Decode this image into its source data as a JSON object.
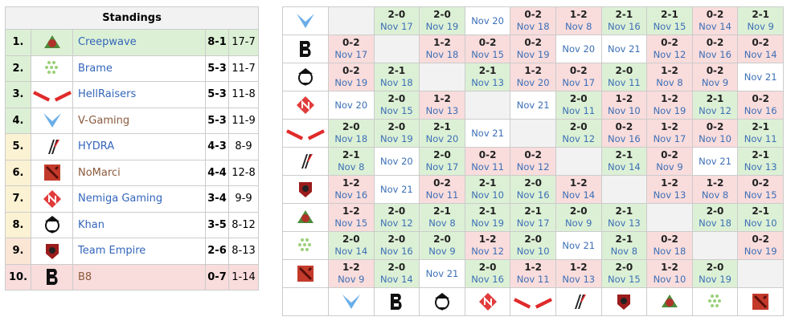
{
  "standings": {
    "title": "Standings",
    "rows": [
      {
        "rank": "1.",
        "team": "Creepwave",
        "matches": "8-1",
        "games": "17-7"
      },
      {
        "rank": "2.",
        "team": "Brame",
        "matches": "5-3",
        "games": "11-7"
      },
      {
        "rank": "3.",
        "team": "HellRaisers",
        "matches": "5-3",
        "games": "11-8"
      },
      {
        "rank": "4.",
        "team": "V-Gaming",
        "matches": "5-3",
        "games": "11-9"
      },
      {
        "rank": "5.",
        "team": "HYDRA",
        "matches": "4-3",
        "games": "8-9"
      },
      {
        "rank": "6.",
        "team": "NoMarci",
        "matches": "4-4",
        "games": "12-8"
      },
      {
        "rank": "7.",
        "team": "Nemiga Gaming",
        "matches": "3-4",
        "games": "9-9"
      },
      {
        "rank": "8.",
        "team": "Khan",
        "matches": "3-5",
        "games": "8-12"
      },
      {
        "rank": "9.",
        "team": "Team Empire",
        "matches": "2-6",
        "games": "8-13"
      },
      {
        "rank": "10.",
        "team": "B8",
        "matches": "0-7",
        "games": "1-14"
      }
    ]
  },
  "crosstable": {
    "rows": [
      [
        null,
        {
          "score": "2-0",
          "date": "Nov 17"
        },
        {
          "score": "2-0",
          "date": "Nov 19"
        },
        {
          "date": "Nov 20"
        },
        {
          "score": "0-2",
          "date": "Nov 18"
        },
        {
          "score": "1-2",
          "date": "Nov 8"
        },
        {
          "score": "2-1",
          "date": "Nov 16"
        },
        {
          "score": "2-1",
          "date": "Nov 15"
        },
        {
          "score": "0-2",
          "date": "Nov 14"
        },
        {
          "score": "2-1",
          "date": "Nov 9"
        }
      ],
      [
        {
          "score": "0-2",
          "date": "Nov 17"
        },
        null,
        {
          "score": "1-2",
          "date": "Nov 18"
        },
        {
          "score": "0-2",
          "date": "Nov 15"
        },
        {
          "score": "0-2",
          "date": "Nov 19"
        },
        {
          "date": "Nov 20"
        },
        {
          "date": "Nov 21"
        },
        {
          "score": "0-2",
          "date": "Nov 12"
        },
        {
          "score": "0-2",
          "date": "Nov 16"
        },
        {
          "score": "0-2",
          "date": "Nov 14"
        }
      ],
      [
        {
          "score": "0-2",
          "date": "Nov 19"
        },
        {
          "score": "2-1",
          "date": "Nov 18"
        },
        null,
        {
          "score": "2-1",
          "date": "Nov 13"
        },
        {
          "score": "1-2",
          "date": "Nov 20"
        },
        {
          "score": "0-2",
          "date": "Nov 17"
        },
        {
          "score": "2-0",
          "date": "Nov 11"
        },
        {
          "score": "1-2",
          "date": "Nov 8"
        },
        {
          "score": "0-2",
          "date": "Nov 9"
        },
        {
          "date": "Nov 21"
        }
      ],
      [
        {
          "date": "Nov 20"
        },
        {
          "score": "2-0",
          "date": "Nov 15"
        },
        {
          "score": "1-2",
          "date": "Nov 13"
        },
        null,
        {
          "date": "Nov 21"
        },
        {
          "score": "2-0",
          "date": "Nov 11"
        },
        {
          "score": "1-2",
          "date": "Nov 10"
        },
        {
          "score": "1-2",
          "date": "Nov 19"
        },
        {
          "score": "2-1",
          "date": "Nov 12"
        },
        {
          "score": "0-2",
          "date": "Nov 16"
        }
      ],
      [
        {
          "score": "2-0",
          "date": "Nov 18"
        },
        {
          "score": "2-0",
          "date": "Nov 19"
        },
        {
          "score": "2-1",
          "date": "Nov 20"
        },
        {
          "date": "Nov 21"
        },
        null,
        {
          "score": "2-0",
          "date": "Nov 12"
        },
        {
          "score": "0-2",
          "date": "Nov 16"
        },
        {
          "score": "1-2",
          "date": "Nov 17"
        },
        {
          "score": "0-2",
          "date": "Nov 10"
        },
        {
          "score": "2-1",
          "date": "Nov 11"
        }
      ],
      [
        {
          "score": "2-1",
          "date": "Nov 8"
        },
        {
          "date": "Nov 20"
        },
        {
          "score": "2-0",
          "date": "Nov 17"
        },
        {
          "score": "0-2",
          "date": "Nov 11"
        },
        {
          "score": "0-2",
          "date": "Nov 12"
        },
        null,
        {
          "score": "2-1",
          "date": "Nov 14"
        },
        {
          "score": "0-2",
          "date": "Nov 9"
        },
        {
          "date": "Nov 21"
        },
        {
          "score": "2-1",
          "date": "Nov 13"
        }
      ],
      [
        {
          "score": "1-2",
          "date": "Nov 16"
        },
        {
          "date": "Nov 21"
        },
        {
          "score": "0-2",
          "date": "Nov 11"
        },
        {
          "score": "2-1",
          "date": "Nov 10"
        },
        {
          "score": "2-0",
          "date": "Nov 16"
        },
        {
          "score": "1-2",
          "date": "Nov 14"
        },
        null,
        {
          "score": "1-2",
          "date": "Nov 13"
        },
        {
          "score": "1-2",
          "date": "Nov 8"
        },
        {
          "score": "0-2",
          "date": "Nov 15"
        }
      ],
      [
        {
          "score": "1-2",
          "date": "Nov 15"
        },
        {
          "score": "2-0",
          "date": "Nov 12"
        },
        {
          "score": "2-1",
          "date": "Nov 8"
        },
        {
          "score": "2-1",
          "date": "Nov 19"
        },
        {
          "score": "2-1",
          "date": "Nov 17"
        },
        {
          "score": "2-0",
          "date": "Nov 9"
        },
        {
          "score": "2-1",
          "date": "Nov 13"
        },
        null,
        {
          "score": "2-0",
          "date": "Nov 18"
        },
        {
          "score": "2-1",
          "date": "Nov 10"
        }
      ],
      [
        {
          "score": "2-0",
          "date": "Nov 14"
        },
        {
          "score": "2-0",
          "date": "Nov 16"
        },
        {
          "score": "2-0",
          "date": "Nov 9"
        },
        {
          "score": "1-2",
          "date": "Nov 12"
        },
        {
          "score": "2-0",
          "date": "Nov 10"
        },
        {
          "date": "Nov 21"
        },
        {
          "score": "2-1",
          "date": "Nov 8"
        },
        {
          "score": "0-2",
          "date": "Nov 18"
        },
        null,
        {
          "score": "0-2",
          "date": "Nov 19"
        }
      ],
      [
        {
          "score": "1-2",
          "date": "Nov 9"
        },
        {
          "score": "2-0",
          "date": "Nov 14"
        },
        {
          "date": "Nov 21"
        },
        {
          "score": "2-0",
          "date": "Nov 16"
        },
        {
          "score": "1-2",
          "date": "Nov 11"
        },
        {
          "score": "1-2",
          "date": "Nov 13"
        },
        {
          "score": "2-0",
          "date": "Nov 15"
        },
        {
          "score": "1-2",
          "date": "Nov 10"
        },
        {
          "score": "2-0",
          "date": "Nov 19"
        },
        null
      ]
    ]
  }
}
